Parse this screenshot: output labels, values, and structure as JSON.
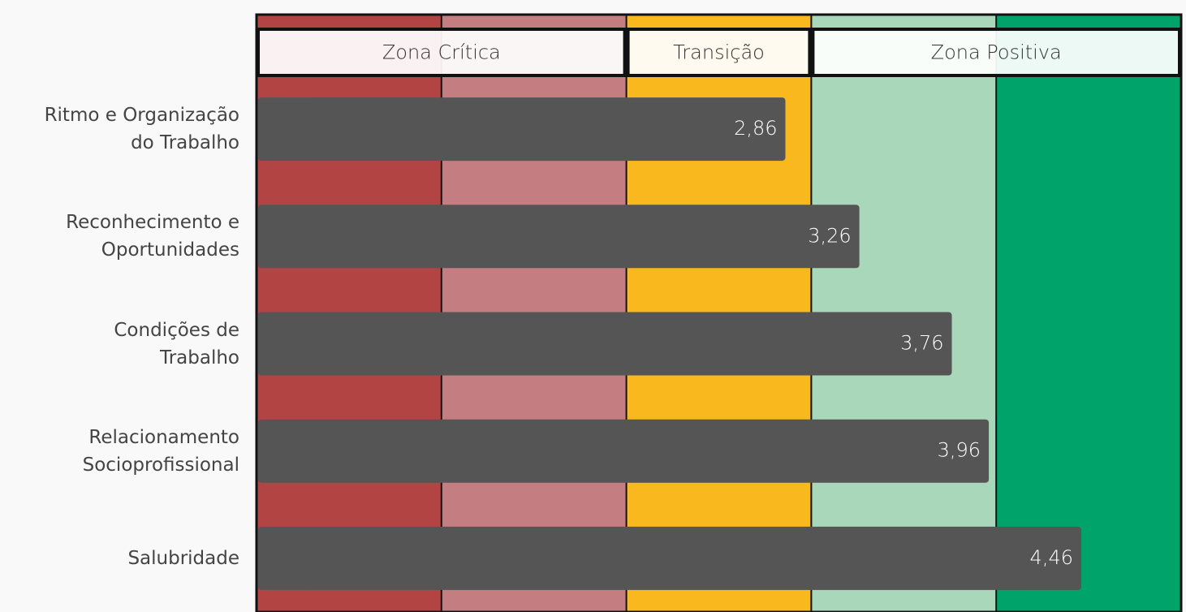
{
  "chart_data": {
    "type": "hbar",
    "categories": [
      "Ritmo e Organização\ndo Trabalho",
      "Reconhecimento e\nOportunidades",
      "Condições de\nTrabalho",
      "Relacionamento\nSocioprofissional",
      "Salubridade"
    ],
    "values": [
      2.86,
      3.26,
      3.76,
      3.96,
      4.46
    ],
    "value_labels": [
      "2,86",
      "3,26",
      "3,76",
      "3,96",
      "4,46"
    ],
    "color": "#555555",
    "xlim": [
      0,
      5
    ],
    "bands": [
      {
        "from": 0,
        "to": 1,
        "color": "#b34444"
      },
      {
        "from": 1,
        "to": 2,
        "color": "#c47e82"
      },
      {
        "from": 2,
        "to": 3,
        "color": "#f9b81d"
      },
      {
        "from": 3,
        "to": 4,
        "color": "#a8d8b9"
      },
      {
        "from": 4,
        "to": 5,
        "color": "#00a36a"
      }
    ],
    "zones": [
      {
        "label": "Zona Crítica",
        "from": 0,
        "to": 2
      },
      {
        "label": "Transição",
        "from": 2,
        "to": 3
      },
      {
        "label": "Zona Positiva",
        "from": 3,
        "to": 5
      }
    ]
  }
}
